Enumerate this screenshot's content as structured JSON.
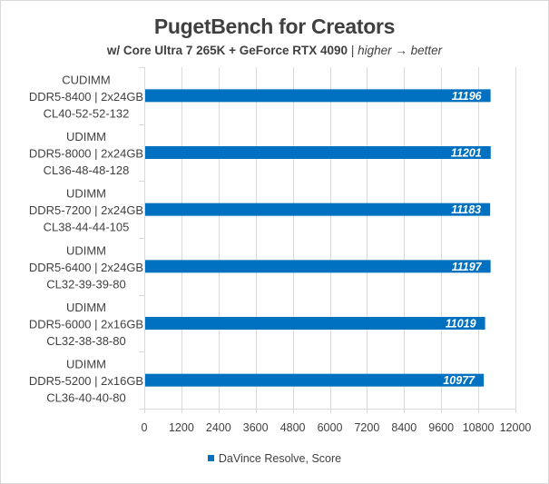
{
  "chart_data": {
    "type": "bar",
    "orientation": "horizontal",
    "title": "PugetBench for Creators",
    "subtitle_bold": "w/ Core Ultra 7 265K + GeForce RTX 4090",
    "subtitle_sep": " | ",
    "subtitle_italic": "higher → better",
    "categories": [
      [
        "CUDIMM",
        "DDR5-8400 | 2x24GB",
        "CL40-52-52-132"
      ],
      [
        "UDIMM",
        "DDR5-8000 | 2x24GB",
        "CL36-48-48-128"
      ],
      [
        "UDIMM",
        "DDR5-7200 | 2x24GB",
        "CL38-44-44-105"
      ],
      [
        "UDIMM",
        "DDR5-6400 | 2x24GB",
        "CL32-39-39-80"
      ],
      [
        "UDIMM",
        "DDR5-6000 | 2x16GB",
        "CL32-38-38-80"
      ],
      [
        "UDIMM",
        "DDR5-5200 | 2x16GB",
        "CL36-40-40-80"
      ]
    ],
    "series": [
      {
        "name": "DaVince Resolve, Score",
        "values": [
          11196,
          11201,
          11183,
          11197,
          11019,
          10977
        ]
      }
    ],
    "xlim": [
      0,
      12000
    ],
    "xticks": [
      0,
      1200,
      2400,
      3600,
      4800,
      6000,
      7200,
      8400,
      9600,
      10800,
      12000
    ],
    "grid": "vertical",
    "legend": "bottom",
    "colors": {
      "bar": "#0070c0",
      "grid": "#d9d9d9",
      "text": "#404040"
    }
  }
}
